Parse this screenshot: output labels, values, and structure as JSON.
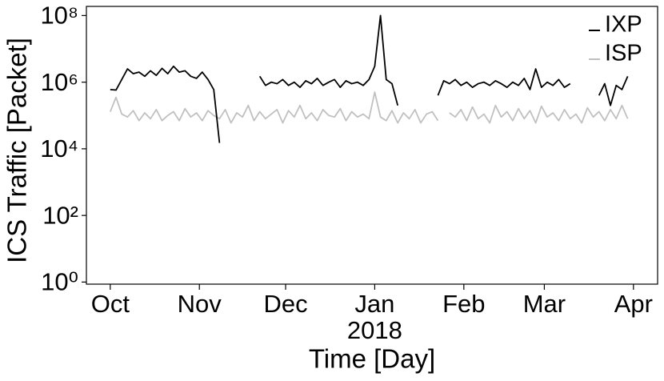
{
  "chart_data": {
    "type": "line",
    "y_label": "ICS Traffic [Packet]",
    "x_label": "Time [Day]",
    "year_label": "2018",
    "yscale": "log",
    "legend": "upper right",
    "x": [
      0,
      2,
      4,
      6,
      8,
      10,
      12,
      14,
      16,
      18,
      20,
      22,
      24,
      26,
      28,
      30,
      32,
      34,
      36,
      38,
      40,
      42,
      44,
      46,
      48,
      50,
      52,
      54,
      56,
      58,
      60,
      62,
      64,
      66,
      68,
      70,
      72,
      74,
      76,
      78,
      80,
      82,
      84,
      86,
      88,
      90,
      92,
      94,
      96,
      98,
      100,
      102,
      104,
      106,
      108,
      110,
      112,
      114,
      116,
      118,
      120,
      122,
      124,
      126,
      128,
      130,
      132,
      134,
      136,
      138,
      140,
      142,
      144,
      146,
      148,
      150,
      152,
      154,
      156,
      158,
      160,
      162,
      164,
      166,
      168,
      170,
      172,
      174,
      176,
      178,
      180
    ],
    "xlim": [
      -8.3,
      190.4
    ],
    "xticks": [
      {
        "value": 0,
        "label": "Oct"
      },
      {
        "value": 31,
        "label": "Nov"
      },
      {
        "value": 61,
        "label": "Dec"
      },
      {
        "value": 92,
        "label": "Jan"
      },
      {
        "value": 123,
        "label": "Feb"
      },
      {
        "value": 151,
        "label": "Mar"
      },
      {
        "value": 182,
        "label": "Apr"
      }
    ],
    "ylim": [
      0.866,
      188000000
    ],
    "yticks": [
      {
        "value": 1,
        "label": "10⁰"
      },
      {
        "value": 100,
        "label": "10²"
      },
      {
        "value": 10000,
        "label": "10⁴"
      },
      {
        "value": 1000000,
        "label": "10⁶"
      },
      {
        "value": 100000000,
        "label": "10⁸"
      }
    ],
    "series": [
      {
        "name": "IXP",
        "color": "#000000",
        "values": [
          600000,
          580000,
          1200000,
          2500000,
          1800000,
          2000000,
          1500000,
          2200000,
          1600000,
          2600000,
          1800000,
          3000000,
          2000000,
          2200000,
          1500000,
          1300000,
          2000000,
          1200000,
          600000,
          15000,
          null,
          null,
          null,
          null,
          null,
          null,
          1500000,
          800000,
          1000000,
          900000,
          1200000,
          800000,
          1000000,
          700000,
          1100000,
          900000,
          1300000,
          800000,
          1000000,
          1200000,
          700000,
          1100000,
          900000,
          1000000,
          800000,
          1200000,
          3000000,
          100000000,
          1200000,
          900000,
          200000,
          null,
          null,
          null,
          null,
          null,
          null,
          400000,
          1100000,
          900000,
          1200000,
          800000,
          1000000,
          700000,
          900000,
          1000000,
          800000,
          1100000,
          900000,
          700000,
          1000000,
          800000,
          1300000,
          600000,
          2500000,
          700000,
          1000000,
          800000,
          1200000,
          700000,
          900000,
          null,
          null,
          null,
          null,
          400000,
          900000,
          200000,
          800000,
          600000,
          1500000
        ]
      },
      {
        "name": "ISP",
        "color": "#c0c0c0",
        "values": [
          130000,
          350000,
          110000,
          90000,
          140000,
          70000,
          120000,
          80000,
          150000,
          70000,
          100000,
          130000,
          70000,
          160000,
          90000,
          120000,
          70000,
          140000,
          100000,
          80000,
          150000,
          60000,
          120000,
          90000,
          200000,
          70000,
          130000,
          80000,
          110000,
          150000,
          60000,
          140000,
          90000,
          200000,
          80000,
          120000,
          70000,
          150000,
          100000,
          90000,
          160000,
          70000,
          130000,
          90000,
          110000,
          80000,
          500000,
          90000,
          70000,
          140000,
          60000,
          120000,
          80000,
          150000,
          60000,
          110000,
          130000,
          70000,
          null,
          120000,
          90000,
          150000,
          70000,
          180000,
          80000,
          110000,
          60000,
          200000,
          90000,
          130000,
          70000,
          160000,
          80000,
          140000,
          60000,
          190000,
          90000,
          120000,
          70000,
          150000,
          80000,
          110000,
          60000,
          170000,
          90000,
          130000,
          70000,
          150000,
          80000,
          200000,
          80000
        ]
      }
    ]
  }
}
